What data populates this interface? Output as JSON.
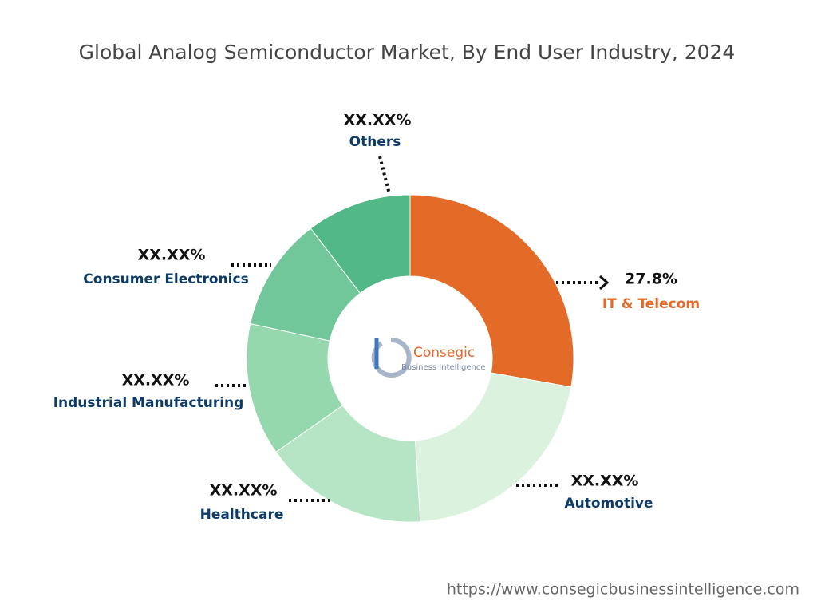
{
  "chart_data": {
    "type": "donut",
    "title": "Global Analog Semiconductor Market, By End User Industry, 2024",
    "categories": [
      "IT & Telecom",
      "Automotive",
      "Healthcare",
      "Industrial Manufacturing",
      "Consumer Electronics",
      "Others"
    ],
    "values": [
      27.8,
      21.2,
      16.3,
      13.1,
      11.2,
      10.4
    ],
    "value_labels": [
      "27.8%",
      "XX.XX%",
      "XX.XX%",
      "XX.XX%",
      "XX.XX%",
      "XX.XX%"
    ],
    "colors": [
      "#e36a27",
      "#daf2de",
      "#b5e5c5",
      "#95d8ad",
      "#72c79a",
      "#52b887"
    ],
    "watermark": {
      "name": "Consegic",
      "tagline": "Business Intelligence"
    },
    "source": "https://www.consegicbusinessintelligence.com"
  }
}
